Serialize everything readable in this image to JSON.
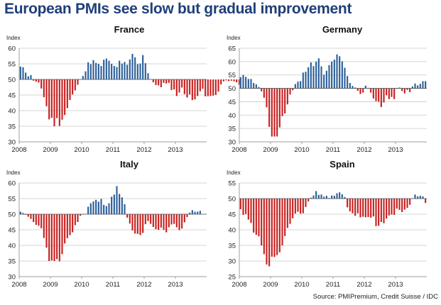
{
  "title": "European PMIs see slow but gradual improvement",
  "source": "Source: PMIPremium, Credit Suisse / IDC",
  "colors": {
    "positive": "#2b5f9a",
    "negative": "#c81f1f",
    "grid": "#c9c9c9",
    "axis": "#888888"
  },
  "chart_data": [
    {
      "type": "bar",
      "title": "France",
      "ylabel": "Index",
      "baseline": 50,
      "ylim": [
        30,
        60
      ],
      "yticks": [
        30,
        35,
        40,
        45,
        50,
        55,
        60
      ],
      "xticks": [
        "2008",
        "2009",
        "2010",
        "2011",
        "2012",
        "2013"
      ],
      "start": "2008-01",
      "frequency": "monthly",
      "values": [
        54.1,
        53.9,
        52.2,
        51.0,
        51.4,
        49.6,
        49.3,
        49.0,
        47.1,
        44.3,
        41.4,
        37.2,
        37.7,
        35.0,
        37.6,
        35.1,
        37.1,
        38.6,
        40.8,
        43.4,
        45.2,
        46.5,
        48.3,
        50.1,
        51.1,
        52.6,
        55.5,
        54.9,
        56.2,
        55.3,
        55.0,
        54.3,
        56.3,
        56.7,
        56.0,
        55.0,
        54.3,
        54.0,
        56.0,
        55.1,
        55.6,
        54.7,
        56.4,
        58.2,
        57.1,
        54.9,
        55.1,
        57.8,
        55.2,
        52.0,
        50.1,
        49.1,
        48.2,
        48.1,
        47.5,
        48.9,
        48.7,
        48.9,
        46.6,
        46.8,
        44.7,
        45.8,
        47.4,
        45.3,
        44.2,
        45.2,
        43.4,
        43.6,
        44.7,
        46.2,
        47.0,
        44.6,
        44.6,
        44.7,
        44.8,
        45.0,
        46.1,
        48.4,
        49.4,
        49.7,
        49.5,
        49.6,
        49.4,
        49.1,
        48.3
      ]
    },
    {
      "type": "bar",
      "title": "Germany",
      "ylabel": "Index",
      "baseline": 50,
      "ylim": [
        30,
        65
      ],
      "yticks": [
        30,
        35,
        40,
        45,
        50,
        55,
        60,
        65
      ],
      "xticks": [
        "2008",
        "2009",
        "2010",
        "2011",
        "2012",
        "2013"
      ],
      "start": "2008-01",
      "frequency": "monthly",
      "values": [
        54.2,
        55.0,
        54.3,
        53.5,
        53.5,
        52.0,
        51.5,
        50.5,
        48.9,
        46.5,
        42.9,
        35.6,
        32.0,
        32.0,
        32.0,
        35.4,
        39.6,
        40.6,
        44.0,
        47.7,
        49.3,
        51.6,
        52.5,
        52.7,
        55.9,
        56.2,
        57.9,
        59.7,
        58.3,
        60.0,
        61.2,
        58.2,
        55.1,
        56.6,
        58.7,
        60.0,
        60.7,
        62.7,
        62.0,
        60.1,
        57.7,
        54.6,
        52.0,
        50.9,
        50.3,
        49.1,
        47.9,
        48.4,
        51.0,
        50.2,
        48.4,
        46.2,
        45.2,
        45.0,
        43.0,
        44.7,
        47.4,
        46.0,
        46.8,
        46.0,
        49.8,
        50.3,
        49.0,
        48.1,
        49.4,
        48.6,
        50.7,
        51.8,
        51.1,
        51.7,
        52.7,
        52.7
      ]
    },
    {
      "type": "bar",
      "title": "Italy",
      "ylabel": "Index",
      "baseline": 50,
      "ylim": [
        30,
        60
      ],
      "yticks": [
        30,
        35,
        40,
        45,
        50,
        55,
        60
      ],
      "xticks": [
        "2008",
        "2009",
        "2010",
        "2011",
        "2012",
        "2013"
      ],
      "start": "2008-01",
      "frequency": "monthly",
      "values": [
        50.8,
        50.4,
        49.8,
        49.2,
        48.5,
        47.5,
        46.6,
        46.3,
        45.5,
        42.4,
        39.3,
        35.0,
        35.2,
        35.0,
        35.6,
        34.9,
        37.2,
        40.6,
        42.3,
        43.3,
        44.2,
        46.5,
        47.5,
        49.5,
        50.0,
        50.1,
        52.4,
        53.5,
        54.1,
        54.6,
        54.0,
        54.9,
        53.0,
        52.6,
        53.5,
        55.6,
        56.3,
        59.0,
        56.5,
        55.4,
        53.2,
        48.9,
        47.0,
        44.8,
        43.8,
        43.7,
        43.3,
        44.0,
        46.8,
        47.8,
        46.9,
        45.9,
        45.2,
        45.0,
        45.7,
        45.0,
        44.2,
        45.8,
        46.7,
        46.9,
        45.8,
        44.9,
        45.4,
        47.4,
        49.1,
        50.5,
        51.3,
        50.8,
        50.8,
        51.1
      ]
    },
    {
      "type": "bar",
      "title": "Spain",
      "ylabel": "Index",
      "baseline": 50,
      "ylim": [
        25,
        55
      ],
      "yticks": [
        25,
        30,
        35,
        40,
        45,
        50,
        55
      ],
      "xticks": [
        "2008",
        "2009",
        "2010",
        "2011",
        "2012",
        "2013"
      ],
      "start": "2008-01",
      "frequency": "monthly",
      "values": [
        46.6,
        44.8,
        45.1,
        43.3,
        42.2,
        39.1,
        38.4,
        37.9,
        35.0,
        32.2,
        28.9,
        28.3,
        31.4,
        31.3,
        31.9,
        32.8,
        35.0,
        38.0,
        40.6,
        41.9,
        43.7,
        45.2,
        45.8,
        45.2,
        45.3,
        47.3,
        49.1,
        50.3,
        51.0,
        52.4,
        51.2,
        51.3,
        50.6,
        50.9,
        50.2,
        51.0,
        50.9,
        51.7,
        52.0,
        51.4,
        50.5,
        47.2,
        45.9,
        45.3,
        44.5,
        45.3,
        44.0,
        44.2,
        44.0,
        44.1,
        43.9,
        44.3,
        41.2,
        41.3,
        42.5,
        42.1,
        43.6,
        44.6,
        44.9,
        44.8,
        46.8,
        46.4,
        45.7,
        46.5,
        47.0,
        48.0,
        50.1,
        51.3,
        50.7,
        50.9,
        50.7,
        48.6
      ]
    }
  ]
}
